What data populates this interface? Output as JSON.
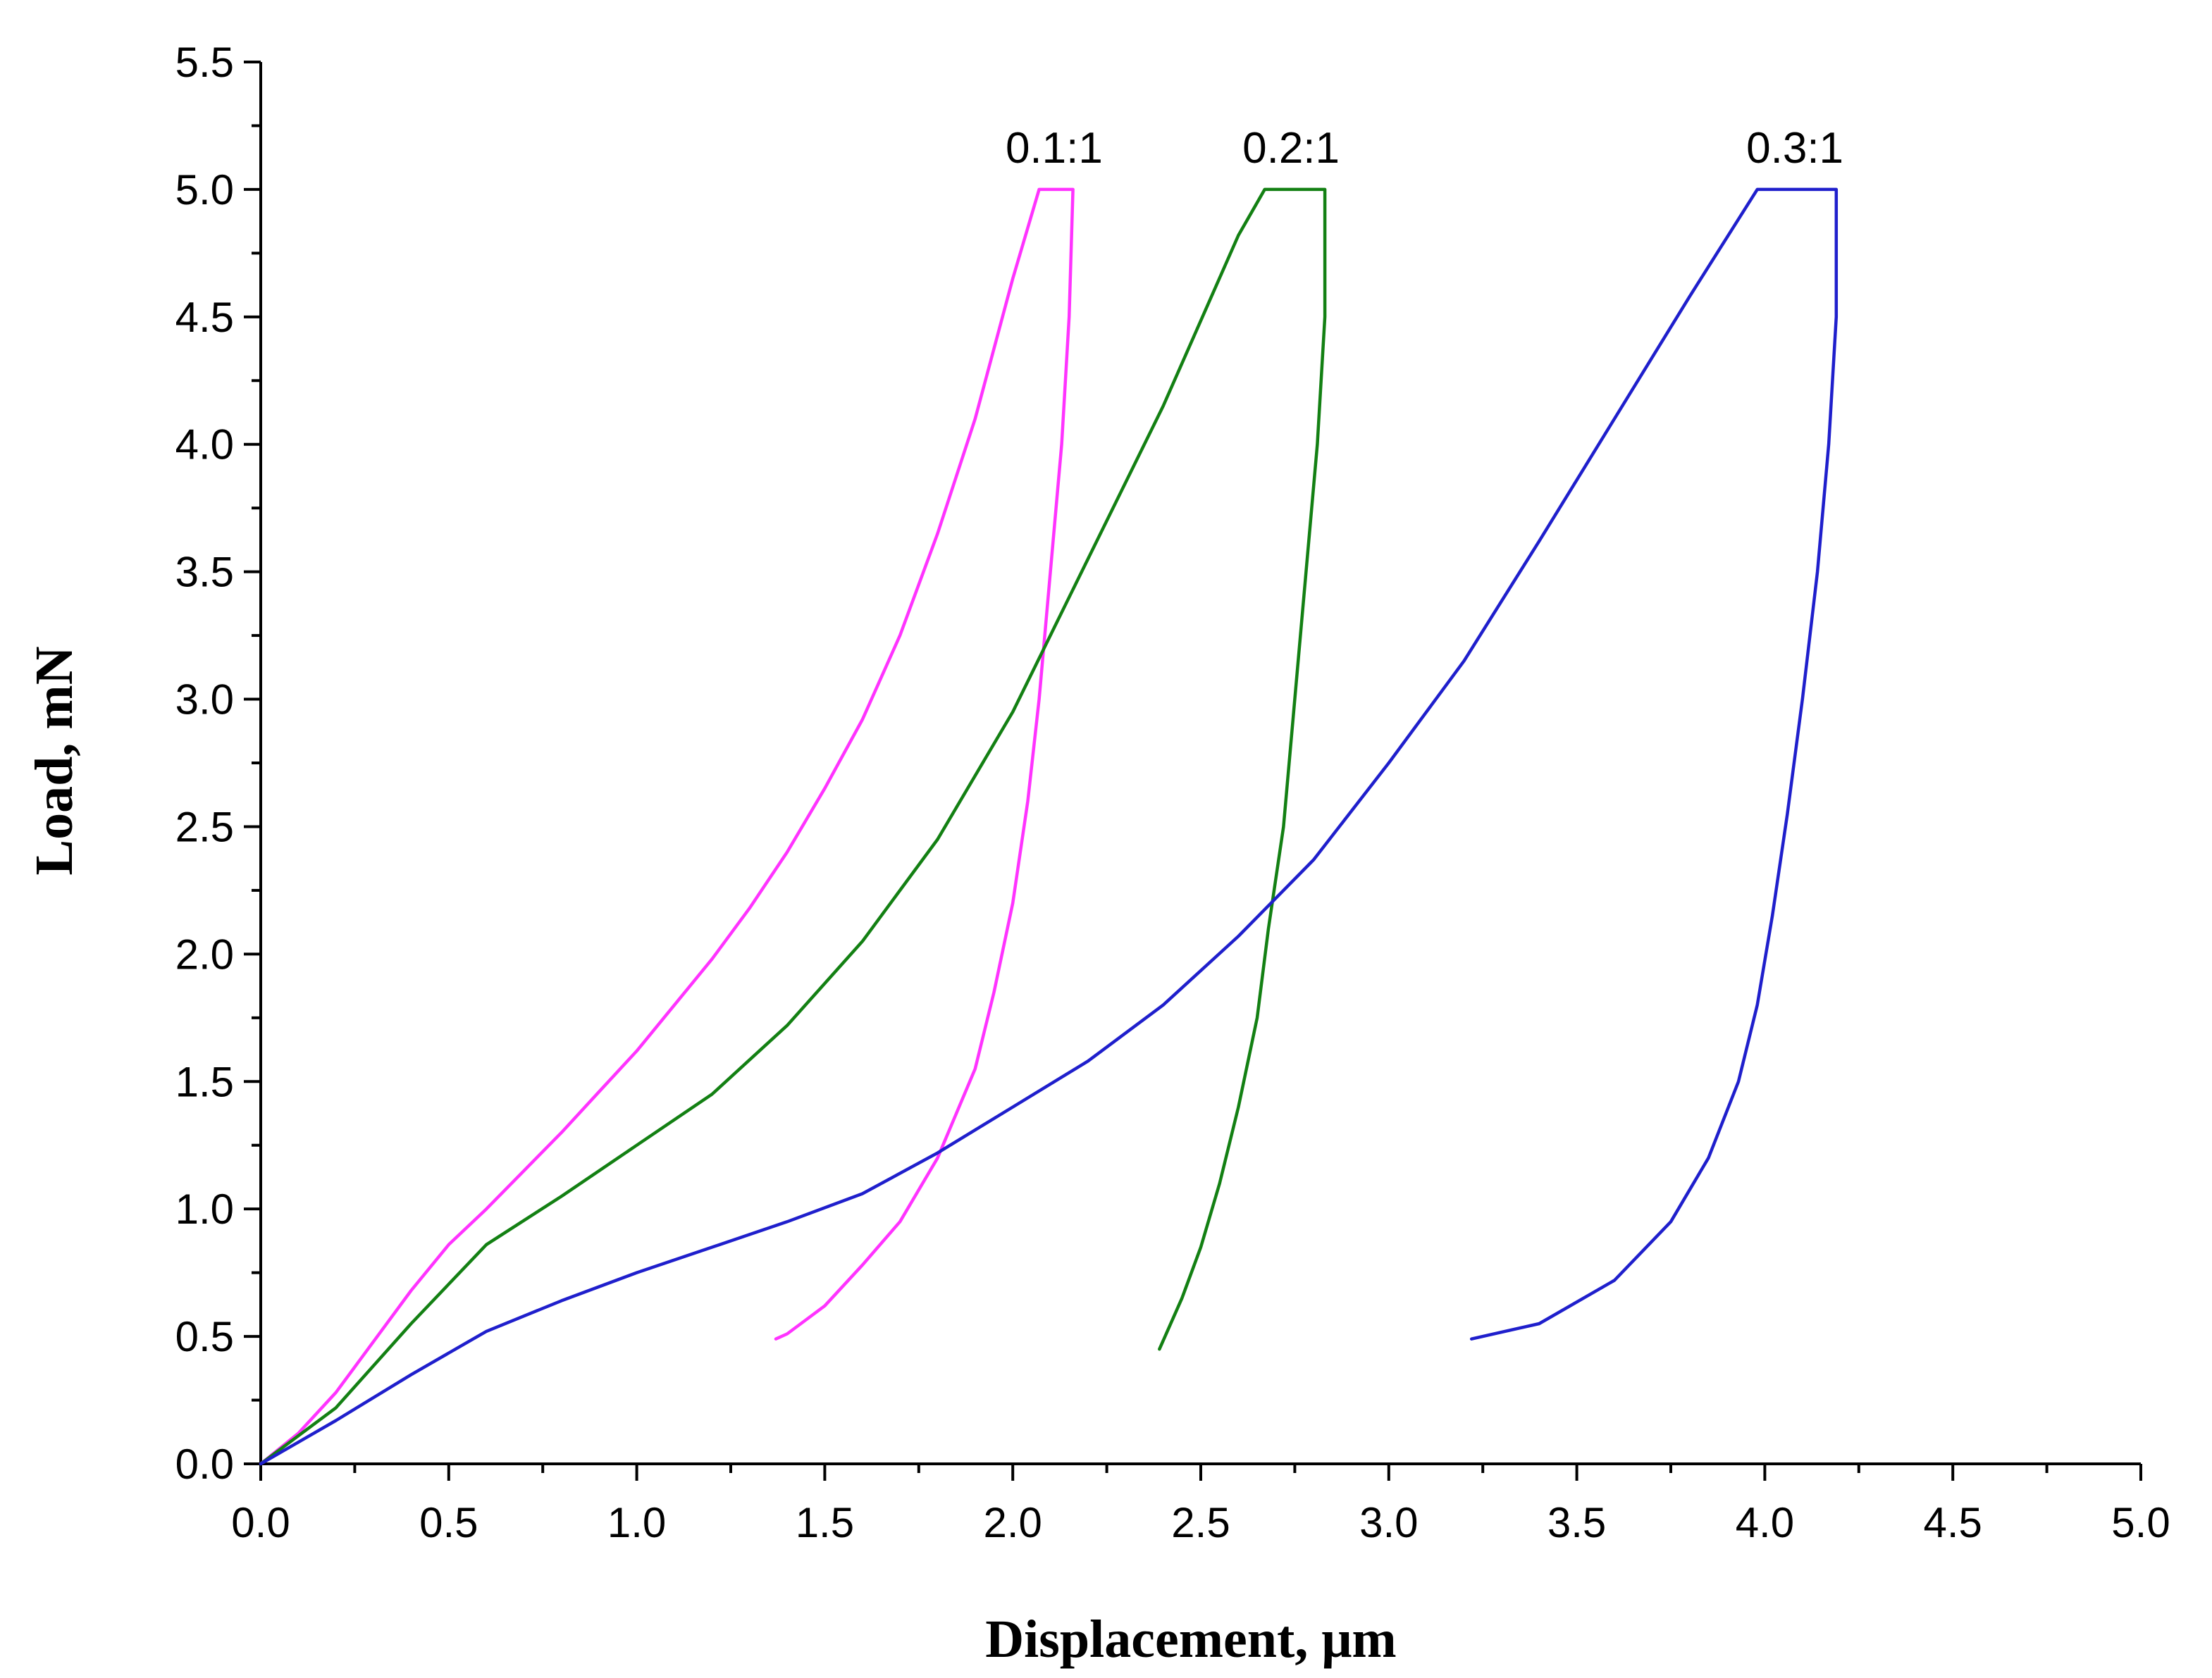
{
  "chart_data": {
    "type": "line",
    "title": "",
    "xlabel": "Displacement, μm",
    "ylabel": "Load, mN",
    "xlim": [
      0,
      5
    ],
    "ylim": [
      0,
      5.5
    ],
    "x_ticks": [
      "0.0",
      "0.5",
      "1.0",
      "1.5",
      "2.0",
      "2.5",
      "3.0",
      "3.5",
      "4.0",
      "4.5",
      "5.0"
    ],
    "y_ticks": [
      "0.0",
      "0.5",
      "1.0",
      "1.5",
      "2.0",
      "2.5",
      "3.0",
      "3.5",
      "4.0",
      "4.5",
      "5.0",
      "5.5"
    ],
    "grid": false,
    "legend": "none",
    "series": [
      {
        "name": "0.1:1",
        "color": "#ff33ff",
        "label_at": [
          2.11,
          5.0
        ],
        "x": [
          0.0,
          0.1,
          0.2,
          0.3,
          0.4,
          0.5,
          0.6,
          0.7,
          0.8,
          0.9,
          1.0,
          1.1,
          1.2,
          1.3,
          1.4,
          1.5,
          1.6,
          1.7,
          1.8,
          1.9,
          2.0,
          2.07,
          2.16,
          2.15,
          2.13,
          2.1,
          2.07,
          2.04,
          2.0,
          1.95,
          1.9,
          1.8,
          1.7,
          1.6,
          1.5,
          1.4,
          1.37
        ],
        "y": [
          0.0,
          0.12,
          0.28,
          0.48,
          0.68,
          0.86,
          1.0,
          1.15,
          1.3,
          1.46,
          1.62,
          1.8,
          1.98,
          2.18,
          2.4,
          2.65,
          2.92,
          3.25,
          3.65,
          4.1,
          4.65,
          5.0,
          5.0,
          4.5,
          4.0,
          3.5,
          3.0,
          2.6,
          2.2,
          1.85,
          1.55,
          1.2,
          0.95,
          0.78,
          0.62,
          0.51,
          0.49
        ]
      },
      {
        "name": "0.2:1",
        "color": "#138013",
        "label_at": [
          2.74,
          5.0
        ],
        "x": [
          0.0,
          0.2,
          0.4,
          0.6,
          0.8,
          1.0,
          1.2,
          1.4,
          1.6,
          1.8,
          2.0,
          2.2,
          2.4,
          2.6,
          2.67,
          2.83,
          2.83,
          2.81,
          2.78,
          2.75,
          2.72,
          2.68,
          2.65,
          2.6,
          2.55,
          2.5,
          2.45,
          2.39
        ],
        "y": [
          0.0,
          0.22,
          0.55,
          0.86,
          1.05,
          1.25,
          1.45,
          1.72,
          2.05,
          2.45,
          2.95,
          3.55,
          4.15,
          4.82,
          5.0,
          5.0,
          4.5,
          4.0,
          3.5,
          3.0,
          2.5,
          2.1,
          1.75,
          1.4,
          1.1,
          0.85,
          0.65,
          0.45
        ]
      },
      {
        "name": "0.3:1",
        "color": "#1f1fcc",
        "label_at": [
          4.08,
          5.0
        ],
        "x": [
          0.0,
          0.2,
          0.4,
          0.6,
          0.8,
          1.0,
          1.2,
          1.4,
          1.6,
          1.8,
          2.0,
          2.2,
          2.4,
          2.6,
          2.8,
          3.0,
          3.2,
          3.4,
          3.6,
          3.8,
          3.98,
          4.19,
          4.19,
          4.17,
          4.14,
          4.1,
          4.06,
          4.02,
          3.98,
          3.93,
          3.85,
          3.75,
          3.6,
          3.4,
          3.22
        ],
        "y": [
          0.0,
          0.17,
          0.35,
          0.52,
          0.64,
          0.75,
          0.85,
          0.95,
          1.06,
          1.22,
          1.4,
          1.58,
          1.8,
          2.07,
          2.37,
          2.75,
          3.15,
          3.62,
          4.1,
          4.58,
          5.0,
          5.0,
          4.5,
          4.0,
          3.5,
          3.0,
          2.55,
          2.15,
          1.8,
          1.5,
          1.2,
          0.95,
          0.72,
          0.55,
          0.49
        ]
      }
    ]
  }
}
